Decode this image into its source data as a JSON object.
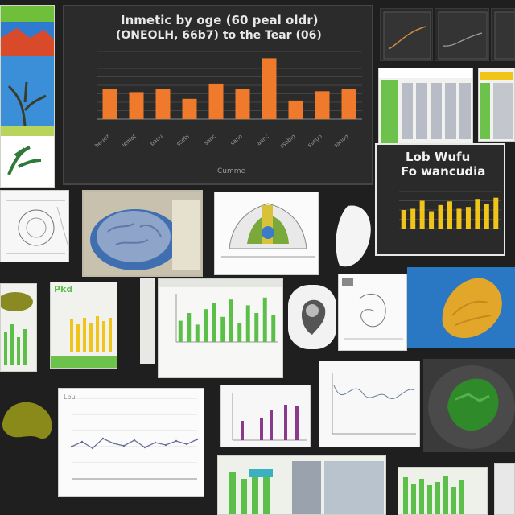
{
  "main_chart": {
    "title_line1": "Inmetic by oge (60 peal oldr)",
    "title_line2": "(ONEOLH, 66b7) to the Tear (06)",
    "xlabel": "Cumme",
    "categories": [
      "beuez",
      "lemot",
      "bauu",
      "ssebi",
      "sanc",
      "sano",
      "aanc",
      "ssebig",
      "ssego",
      "sanog"
    ],
    "values": [
      36,
      32,
      36,
      24,
      42,
      36,
      72,
      22,
      33,
      36
    ],
    "bar_color": "#f07a2b",
    "ylim": [
      0,
      80
    ]
  },
  "yellow_chart": {
    "title_line1": "Lob Wufu",
    "title_line2": "Fo wancudia",
    "values": [
      30,
      32,
      45,
      28,
      38,
      44,
      32,
      35,
      48,
      40,
      50
    ],
    "bar_color": "#f0c419",
    "ylim": [
      0,
      60
    ]
  },
  "green_bar_chart": {
    "values": [
      22,
      30,
      18,
      34,
      40,
      26,
      44,
      20,
      38,
      30,
      46,
      28
    ],
    "bar_color": "#5bbf4a",
    "ylim": [
      0,
      50
    ]
  },
  "line_chart": {
    "values": [
      40,
      46,
      38,
      50,
      44,
      41,
      48,
      39,
      45,
      42,
      47,
      43,
      49
    ],
    "line_color": "#6a6f9a",
    "ylim": [
      0,
      100
    ],
    "axis_label": "Lbu"
  },
  "small_labels": {
    "green_card_title": "Pkd",
    "small_note": "Lbu"
  },
  "colors": {
    "background": "#1f1f1f",
    "orange": "#f07a2b",
    "yellow": "#f0c419",
    "green": "#5bbf4a"
  }
}
